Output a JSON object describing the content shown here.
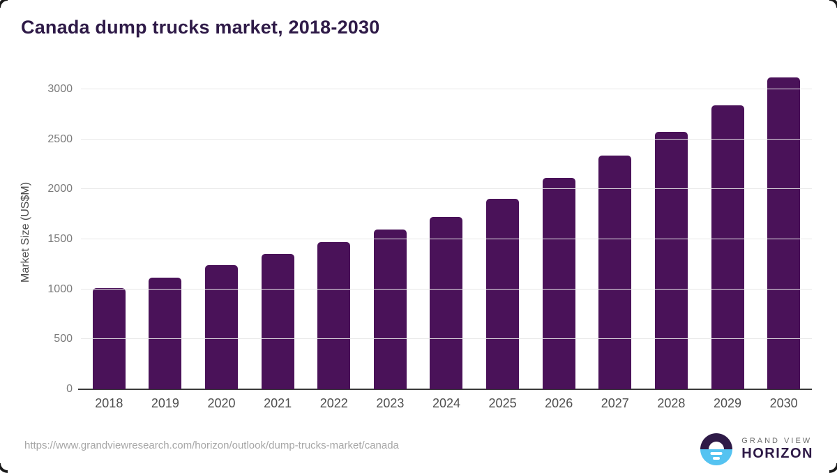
{
  "title": "Canada dump trucks market, 2018-2030",
  "footer": {
    "source_url": "https://www.grandviewresearch.com/horizon/outlook/dump-trucks-market/canada"
  },
  "logo": {
    "top_label": "GRAND VIEW",
    "bottom_label": "HORIZON"
  },
  "colors": {
    "bar": "#4a1259",
    "title_text": "#2e1a47",
    "gridline": "#e7e7e7",
    "axis_line": "#3a3a3a",
    "tick_text": "#7b7b7b",
    "x_label_text": "#4f4f4f",
    "url_text": "#a6a6a6",
    "logo_blue": "#55c3f1",
    "logo_purple": "#2e1a47"
  },
  "chart_data": {
    "type": "bar",
    "title": "Canada dump trucks market, 2018-2030",
    "categories": [
      "2018",
      "2019",
      "2020",
      "2021",
      "2022",
      "2023",
      "2024",
      "2025",
      "2026",
      "2027",
      "2028",
      "2029",
      "2030"
    ],
    "values": [
      1010,
      1115,
      1240,
      1355,
      1470,
      1595,
      1725,
      1905,
      2115,
      2335,
      2575,
      2840,
      3120
    ],
    "xlabel": "",
    "ylabel": "Market Size (US$M)",
    "ylim": [
      0,
      3000
    ],
    "yticks": [
      0,
      500,
      1000,
      1500,
      2000,
      2500,
      3000
    ],
    "grid": true,
    "legend": false,
    "bar_color": "#4a1259"
  }
}
